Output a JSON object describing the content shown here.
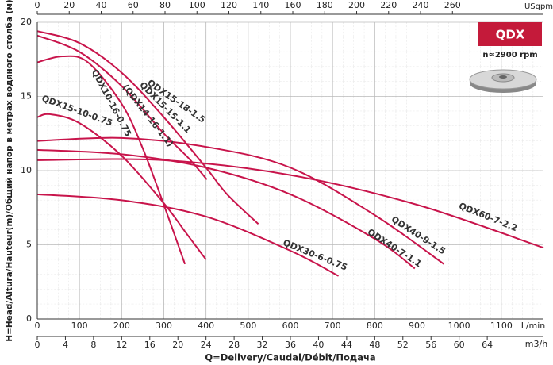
{
  "chart_data": {
    "type": "line",
    "y_label": "H=Head/Altura/Hauteur(m)/Общий напор в метрах водяного столба (м)",
    "x_label": "Q=Delivery/Caudal/Débit/Подача",
    "x_unit": "L/min",
    "x2_unit": "m3/h",
    "x3_unit": "USgpm",
    "badge": "QDX",
    "speed": "n≈2900 rpm",
    "xlim": [
      0,
      1200
    ],
    "xticks": [
      0,
      100,
      200,
      300,
      400,
      500,
      600,
      700,
      800,
      900,
      1000,
      1100
    ],
    "x2lim": [
      0,
      72
    ],
    "x2ticks": [
      0,
      4,
      8,
      12,
      16,
      20,
      24,
      28,
      32,
      36,
      40,
      44,
      48,
      52,
      56,
      60,
      64
    ],
    "x3lim": [
      0,
      317
    ],
    "x3ticks": [
      0,
      20,
      40,
      60,
      80,
      100,
      120,
      140,
      160,
      180,
      200,
      220,
      240,
      260
    ],
    "ylim": [
      0,
      20
    ],
    "yticks": [
      0,
      5,
      10,
      15,
      20
    ],
    "grid": true,
    "series": [
      {
        "name": "QDX15-18-1.5",
        "color": "#c8144b",
        "x": [
          0,
          100,
          200,
          300,
          400,
          450,
          524
        ],
        "values": [
          19.4,
          18.6,
          16.6,
          13.6,
          10.2,
          8.4,
          6.4
        ]
      },
      {
        "name": "QDX15-15-1.1",
        "alt_name": "(QDX14-16-1.1)",
        "color": "#c8144b",
        "x": [
          0,
          100,
          200,
          300,
          360,
          402
        ],
        "values": [
          19.1,
          18.0,
          15.7,
          12.5,
          10.8,
          9.4
        ]
      },
      {
        "name": "QDX10-16-0.75",
        "color": "#c8144b",
        "x": [
          0,
          60,
          120,
          200,
          250,
          300,
          350
        ],
        "values": [
          17.3,
          17.7,
          17.3,
          14.5,
          11.5,
          7.7,
          3.7
        ]
      },
      {
        "name": "QDX15-10-0.75",
        "color": "#c8144b",
        "x": [
          0,
          30,
          100,
          200,
          300,
          350,
          400
        ],
        "values": [
          13.6,
          13.8,
          13.2,
          11.0,
          7.8,
          5.9,
          4.0
        ]
      },
      {
        "name": "QDX40-9-1.5",
        "color": "#c8144b",
        "x": [
          0,
          200,
          400,
          600,
          800,
          964
        ],
        "values": [
          12.0,
          12.2,
          11.6,
          10.2,
          7.0,
          3.7
        ]
      },
      {
        "name": "QDX40-7-1.1",
        "color": "#c8144b",
        "x": [
          0,
          200,
          400,
          600,
          800,
          895
        ],
        "values": [
          11.4,
          11.1,
          10.2,
          8.4,
          5.4,
          3.4
        ]
      },
      {
        "name": "QDX60-7-2.2",
        "color": "#c8144b",
        "x": [
          0,
          300,
          600,
          900,
          1200
        ],
        "values": [
          10.7,
          10.7,
          9.7,
          7.7,
          4.8
        ]
      },
      {
        "name": "QDX30-6-0.75",
        "color": "#c8144b",
        "x": [
          0,
          200,
          400,
          600,
          714
        ],
        "values": [
          8.4,
          8.0,
          6.9,
          4.6,
          2.9
        ]
      }
    ]
  }
}
